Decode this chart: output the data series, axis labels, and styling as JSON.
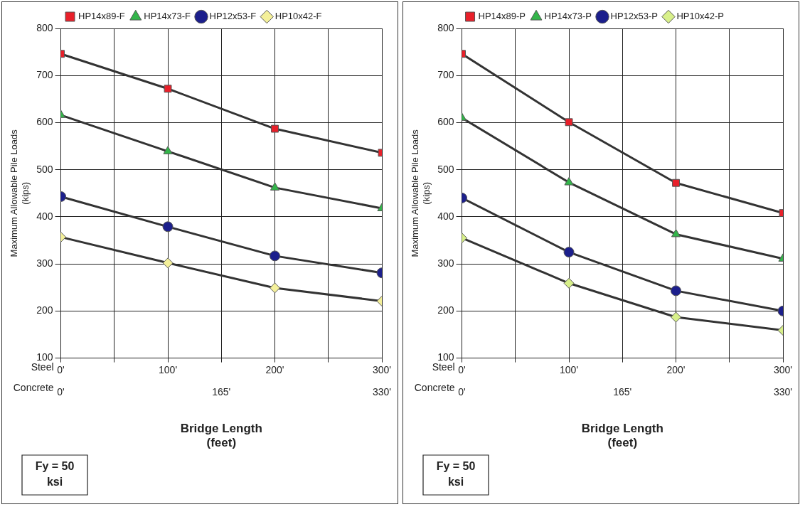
{
  "chart_data": [
    {
      "type": "line",
      "xlabel": "Bridge Length\n(feet)",
      "ylabel": "Maximum Allowable Pile Loads\n(kips)",
      "x": [
        0,
        100,
        200,
        300
      ],
      "series": [
        {
          "name": "HP14x89-F",
          "color": "#e8202a",
          "marker": "square",
          "values": [
            746,
            672,
            587,
            536
          ]
        },
        {
          "name": "HP14x73-F",
          "color": "#33b54a",
          "marker": "triangle",
          "values": [
            616,
            539,
            462,
            418
          ]
        },
        {
          "name": "HP12x53-F",
          "color": "#1c1f8c",
          "marker": "circle",
          "values": [
            443,
            379,
            317,
            281
          ]
        },
        {
          "name": "HP10x42-F",
          "color": "#f4f09a",
          "marker": "diamond",
          "values": [
            357,
            302,
            249,
            221
          ]
        }
      ],
      "xlim": [
        0,
        300
      ],
      "xticks": [
        {
          "value": 0,
          "label": "0'"
        },
        {
          "value": 50,
          "label": null
        },
        {
          "value": 100,
          "label": "100'"
        },
        {
          "value": 150,
          "label": null
        },
        {
          "value": 200,
          "label": "200'"
        },
        {
          "value": 250,
          "label": null
        },
        {
          "value": 300,
          "label": "300'"
        }
      ],
      "x2lim": [
        0,
        330
      ],
      "x2ticks": [
        {
          "value": 0,
          "label": "0'"
        },
        {
          "value": 165,
          "label": "165'"
        },
        {
          "value": 330,
          "label": "330'"
        }
      ],
      "ylim": [
        100,
        800
      ],
      "yticks": [
        100,
        200,
        300,
        400,
        500,
        600,
        700,
        800
      ],
      "grid": true,
      "legend": "top",
      "line_style": "solid",
      "annotations": [
        "Steel",
        "Concrete",
        "Fy = 50\nksi"
      ]
    },
    {
      "type": "line",
      "xlabel": "Bridge Length\n(feet)",
      "ylabel": "Maximum Allowable Pile Loads\n(kips)",
      "x": [
        0,
        100,
        200,
        300
      ],
      "series": [
        {
          "name": "HP14x89-P",
          "color": "#e8202a",
          "marker": "square",
          "values": [
            746,
            601,
            472,
            408
          ]
        },
        {
          "name": "HP14x73-P",
          "color": "#33b54a",
          "marker": "triangle",
          "values": [
            610,
            473,
            363,
            311
          ]
        },
        {
          "name": "HP12x53-P",
          "color": "#1c1f8c",
          "marker": "circle",
          "values": [
            440,
            325,
            243,
            200
          ]
        },
        {
          "name": "HP10x42-P",
          "color": "#d8f08a",
          "marker": "diamond",
          "values": [
            355,
            259,
            187,
            159
          ]
        }
      ],
      "xlim": [
        0,
        300
      ],
      "xticks": [
        {
          "value": 0,
          "label": "0'"
        },
        {
          "value": 50,
          "label": null
        },
        {
          "value": 100,
          "label": "100'"
        },
        {
          "value": 150,
          "label": null
        },
        {
          "value": 200,
          "label": "200'"
        },
        {
          "value": 250,
          "label": null
        },
        {
          "value": 300,
          "label": "300'"
        }
      ],
      "x2lim": [
        0,
        330
      ],
      "x2ticks": [
        {
          "value": 0,
          "label": "0'"
        },
        {
          "value": 165,
          "label": "165'"
        },
        {
          "value": 330,
          "label": "330'"
        }
      ],
      "ylim": [
        100,
        800
      ],
      "yticks": [
        100,
        200,
        300,
        400,
        500,
        600,
        700,
        800
      ],
      "grid": true,
      "legend": "top",
      "line_style": "solid",
      "annotations": [
        "Steel",
        "Concrete",
        "Fy = 50\nksi"
      ]
    }
  ]
}
